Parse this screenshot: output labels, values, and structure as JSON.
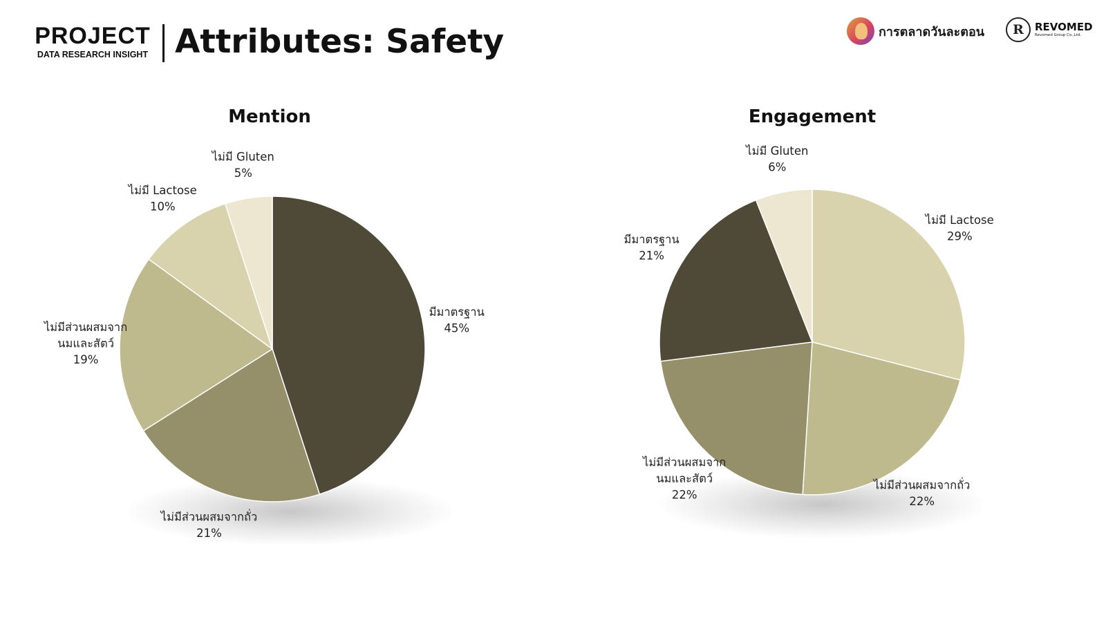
{
  "header": {
    "brand_title": "PROJECT",
    "brand_subtitle": "DATA RESEARCH INSIGHT",
    "page_title": "Attributes: Safety"
  },
  "logos": {
    "partner_name": "การตลาดวันละตอน",
    "revomed_mark": "R",
    "revomed_name": "REVOMED",
    "revomed_sub": "Revomed Group Co.,Ltd."
  },
  "colors": {
    "dark": "#4f4a38",
    "olive": "#958f6a",
    "khaki": "#bfb98e",
    "beige": "#d8d3ad",
    "cream": "#ede6d1"
  },
  "chart_data": [
    {
      "type": "pie",
      "title": "Mention",
      "start_angle_deg": 0,
      "direction": "clockwise",
      "slices": [
        {
          "label_lines": [
            "มีมาตรฐาน"
          ],
          "value": 45,
          "pct_text": "45%",
          "color": "#4f4a38"
        },
        {
          "label_lines": [
            "ไม่มีส่วนผสมจากถั่ว"
          ],
          "value": 21,
          "pct_text": "21%",
          "color": "#958f6a"
        },
        {
          "label_lines": [
            "ไม่มีส่วนผสมจาก",
            "นมและสัตว์"
          ],
          "value": 19,
          "pct_text": "19%",
          "color": "#bfb98e"
        },
        {
          "label_lines": [
            "ไม่มี Lactose"
          ],
          "value": 10,
          "pct_text": "10%",
          "color": "#d8d3ad"
        },
        {
          "label_lines": [
            "ไม่มี Gluten"
          ],
          "value": 5,
          "pct_text": "5%",
          "color": "#ede6d1"
        }
      ]
    },
    {
      "type": "pie",
      "title": "Engagement",
      "start_angle_deg": 0,
      "direction": "clockwise",
      "slices": [
        {
          "label_lines": [
            "ไม่มี Lactose"
          ],
          "value": 29,
          "pct_text": "29%",
          "color": "#d8d3ad"
        },
        {
          "label_lines": [
            "ไม่มีส่วนผสมจากถั่ว"
          ],
          "value": 22,
          "pct_text": "22%",
          "color": "#bfb98e"
        },
        {
          "label_lines": [
            "ไม่มีส่วนผสมจาก",
            "นมและสัตว์"
          ],
          "value": 22,
          "pct_text": "22%",
          "color": "#958f6a"
        },
        {
          "label_lines": [
            "มีมาตรฐาน"
          ],
          "value": 21,
          "pct_text": "21%",
          "color": "#4f4a38"
        },
        {
          "label_lines": [
            "ไม่มี Gluten"
          ],
          "value": 6,
          "pct_text": "6%",
          "color": "#ede6d1"
        }
      ]
    }
  ]
}
